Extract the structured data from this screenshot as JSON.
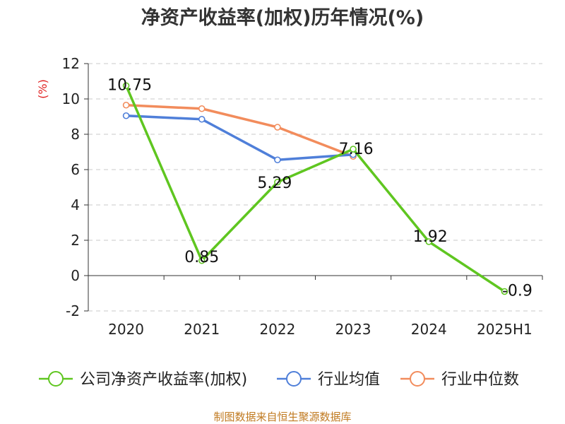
{
  "title": "净资产收益率(加权)历年情况(%)",
  "y_unit": "(%)",
  "source": "制图数据来自恒生聚源数据库",
  "chart_data": {
    "type": "line",
    "title": "净资产收益率(加权)历年情况(%)",
    "xlabel": "",
    "ylabel": "(%)",
    "categories": [
      "2020",
      "2021",
      "2022",
      "2023",
      "2024",
      "2025H1"
    ],
    "ylim": [
      -2,
      12
    ],
    "yticks": [
      -2,
      0,
      2,
      4,
      6,
      8,
      10,
      12
    ],
    "grid": true,
    "legend_position": "bottom",
    "series": [
      {
        "name": "公司净资产收益率(加权)",
        "color": "#5fc620",
        "values": [
          10.75,
          0.85,
          5.29,
          7.16,
          1.92,
          -0.9
        ],
        "labeled": true
      },
      {
        "name": "行业均值",
        "color": "#4f7fd9",
        "values": [
          9.05,
          8.85,
          6.55,
          6.85,
          null,
          null
        ],
        "labeled": false
      },
      {
        "name": "行业中位数",
        "color": "#f28c5c",
        "values": [
          9.65,
          9.45,
          8.4,
          6.75,
          null,
          null
        ],
        "labeled": false
      }
    ],
    "data_labels": [
      "10.75",
      "0.85",
      "5.29",
      "7.16",
      "1.92",
      "-0.9"
    ]
  }
}
